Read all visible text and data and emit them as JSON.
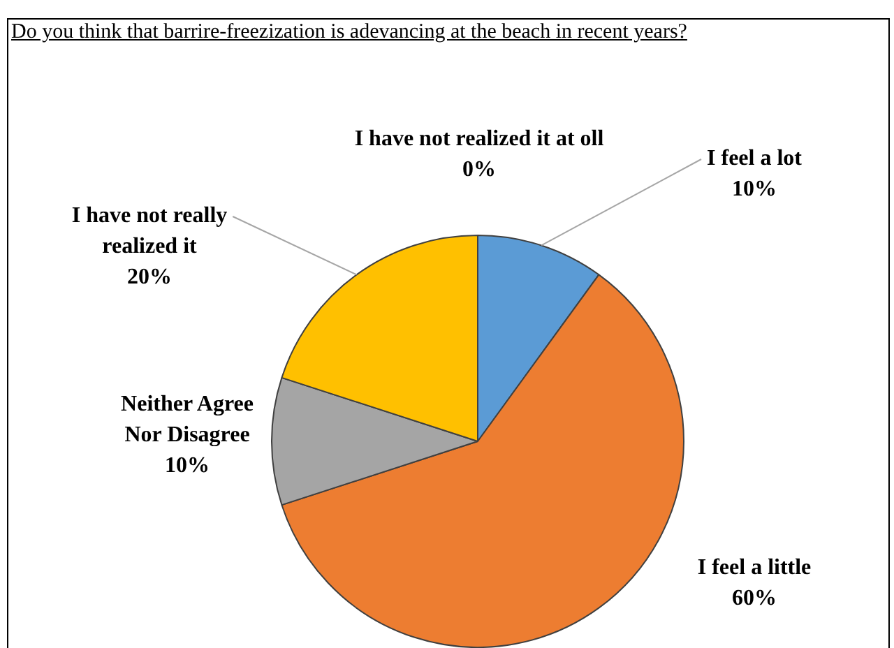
{
  "chart_data": {
    "type": "pie",
    "title": "Do you think that barrire-freezization is adevancing at the beach in recent years?",
    "categories": [
      "I feel a lot",
      "I feel a little",
      "Neither Agree Nor Disagree",
      "I have not really realized it",
      "I have not realized it at oll"
    ],
    "values": [
      10,
      60,
      10,
      20,
      0
    ],
    "colors": [
      "#5b9bd5",
      "#ed7d31",
      "#a5a5a5",
      "#ffc000",
      "#4472c4"
    ],
    "value_labels": [
      "10%",
      "60%",
      "10%",
      "20%",
      "0%"
    ],
    "legend": false
  }
}
